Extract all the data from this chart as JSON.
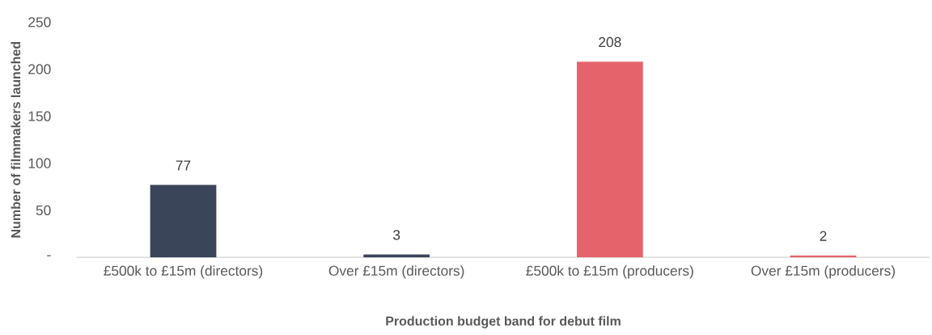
{
  "chart_data": {
    "type": "bar",
    "xlabel": "Production budget band for debut film",
    "ylabel": "Number of filmmakers launched",
    "categories": [
      "£500k to £15m (directors)",
      "Over £15m (directors)",
      "£500k to £15m (producers)",
      "Over £15m (producers)"
    ],
    "values": [
      77,
      3,
      208,
      2
    ],
    "colors": [
      "#3b4559",
      "#3b4559",
      "#e5646c",
      "#e5646c"
    ],
    "ylim": [
      0,
      250
    ],
    "yticks": [
      {
        "value": 0,
        "label": "-"
      },
      50,
      100,
      150,
      200,
      250
    ],
    "data_labels": true
  }
}
